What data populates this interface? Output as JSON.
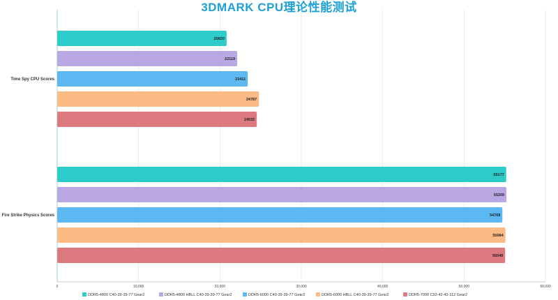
{
  "chart_data": {
    "type": "bar",
    "orientation": "horizontal",
    "title": "3DMARK CPU理论性能测试",
    "categories": [
      "Time Spy CPU Scores",
      "Fire Strike Physics Scores"
    ],
    "series": [
      {
        "name": "DDR5-4800 C40-39-39-77 Gear2",
        "color": "#2ecbcb",
        "values": [
          20820,
          55177
        ]
      },
      {
        "name": "DDR5-4800 HBLL C40-39-39-77 Gear2",
        "color": "#b9a7e3",
        "values": [
          22119,
          55209
        ]
      },
      {
        "name": "DDR5-6000 C40-39-39-77 Gear2",
        "color": "#5cb8f0",
        "values": [
          23411,
          54708
        ]
      },
      {
        "name": "DDR5-6000 HBLL C40-39-39-77 Gear2",
        "color": "#fdba85",
        "values": [
          24787,
          55084
        ]
      },
      {
        "name": "DDR5-7000 C32-42-42-112 Gear2",
        "color": "#dc7a80",
        "values": [
          24532,
          55049
        ]
      }
    ],
    "data_labels": [
      [
        "20820",
        "55177"
      ],
      [
        "22119",
        "55209"
      ],
      [
        "23411",
        "54708"
      ],
      [
        "24787",
        "55084"
      ],
      [
        "24532",
        "55049"
      ]
    ],
    "xlim": [
      0,
      60000
    ],
    "x_ticks": [
      0,
      10000,
      20000,
      30000,
      40000,
      50000,
      60000
    ],
    "x_tick_labels": [
      "0",
      "10,000",
      "20,000",
      "30,000",
      "40,000",
      "50,000",
      "60,000"
    ],
    "grid": true,
    "legend_position": "bottom"
  }
}
